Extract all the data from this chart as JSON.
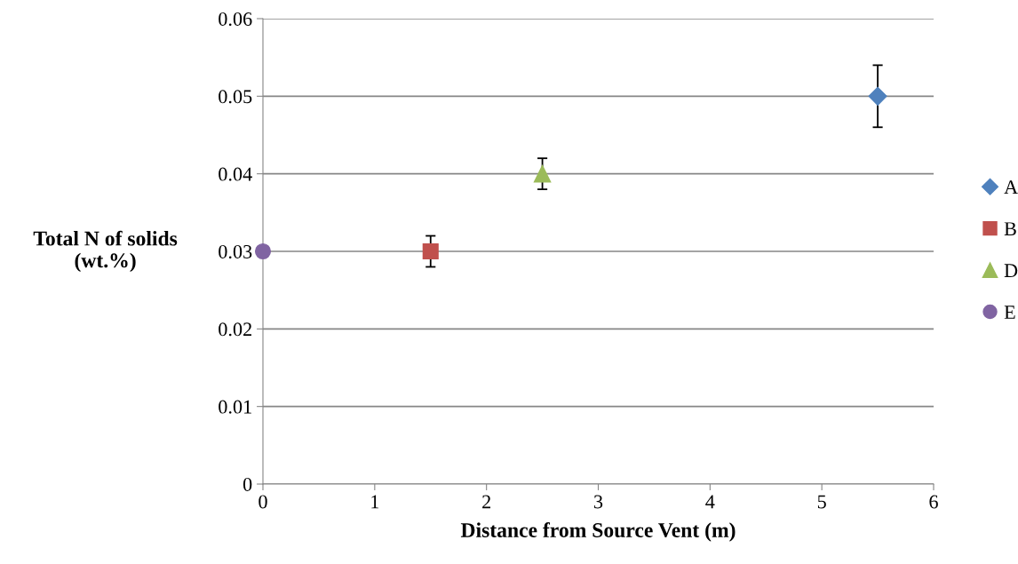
{
  "chart_data": {
    "type": "scatter",
    "xlabel": "Distance from Source Vent (m)",
    "ylabel": "Total N of solids\n(wt.%)",
    "xlim": [
      0,
      6
    ],
    "xticks": [
      0,
      1,
      2,
      3,
      4,
      5,
      6
    ],
    "ylim": [
      0,
      0.06
    ],
    "yticks": [
      0,
      0.01,
      0.02,
      0.03,
      0.04,
      0.05,
      0.06
    ],
    "grid": "y",
    "legend": "right",
    "series": [
      {
        "name": "A",
        "color": "#4f81bd",
        "marker": "diamond",
        "x": [
          5.5
        ],
        "values": [
          0.05
        ],
        "errors": [
          0.004
        ]
      },
      {
        "name": "B",
        "color": "#c0504d",
        "marker": "square",
        "x": [
          1.5
        ],
        "values": [
          0.03
        ],
        "errors": [
          0.002
        ]
      },
      {
        "name": "D",
        "color": "#9bbb59",
        "marker": "triangle",
        "x": [
          2.5
        ],
        "values": [
          0.04
        ],
        "errors": [
          0.002
        ]
      },
      {
        "name": "E",
        "color": "#8064a2",
        "marker": "circle",
        "x": [
          0
        ],
        "values": [
          0.03
        ]
      }
    ]
  }
}
